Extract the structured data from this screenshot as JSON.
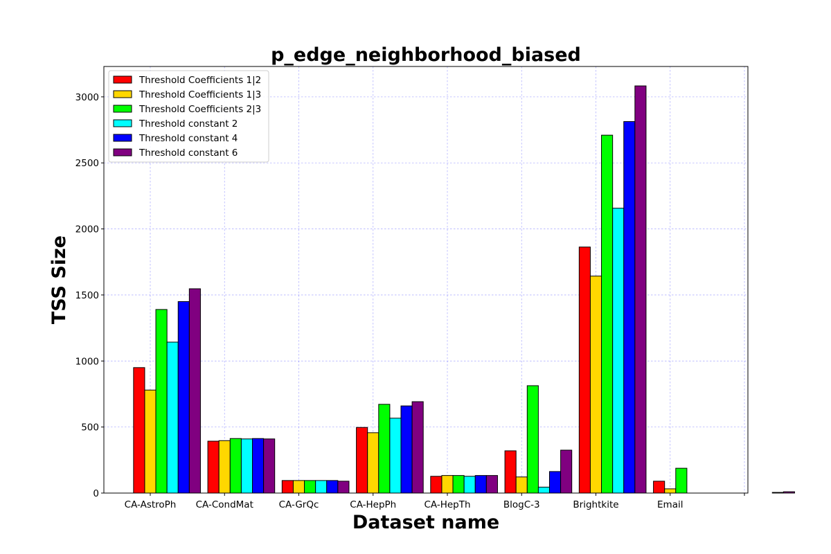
{
  "chart_data": {
    "type": "bar",
    "title": "p_edge_neighborhood_biased",
    "xlabel": "Dataset name",
    "ylabel": "TSS Size",
    "categories": [
      "CA-AstroPh",
      "CA-CondMat",
      "CA-GrQc",
      "CA-HepPh",
      "CA-HepTh",
      "BlogC-3",
      "Brightkite",
      "Email",
      ""
    ],
    "ylim": [
      0,
      3230
    ],
    "yticks": [
      0,
      500,
      1000,
      1500,
      2000,
      2500,
      3000
    ],
    "grid": true,
    "legend_position": "top-left",
    "series": [
      {
        "name": "Threshold Coefficients 1|2",
        "color": "#ff0000",
        "values": [
          950,
          393,
          95,
          497,
          127,
          320,
          1863,
          90,
          0
        ]
      },
      {
        "name": "Threshold Coefficients 1|3",
        "color": "#ffd700",
        "values": [
          780,
          397,
          95,
          457,
          133,
          122,
          1643,
          32,
          0
        ]
      },
      {
        "name": "Threshold Coefficients 2|3",
        "color": "#00ff00",
        "values": [
          1390,
          413,
          95,
          672,
          133,
          813,
          2710,
          188,
          0
        ]
      },
      {
        "name": "Threshold constant 2",
        "color": "#00ffff",
        "values": [
          1143,
          410,
          95,
          567,
          127,
          45,
          2157,
          0,
          0
        ]
      },
      {
        "name": "Threshold constant 4",
        "color": "#0000ff",
        "values": [
          1450,
          413,
          95,
          660,
          133,
          163,
          2813,
          0,
          5
        ]
      },
      {
        "name": "Threshold constant 6",
        "color": "#800080",
        "values": [
          1547,
          410,
          90,
          692,
          133,
          325,
          3083,
          0,
          10
        ]
      }
    ]
  }
}
